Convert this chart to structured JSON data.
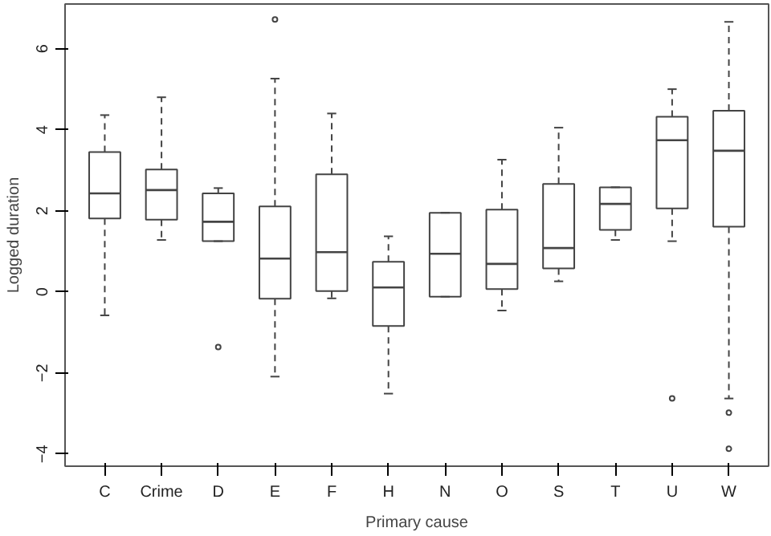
{
  "chart_data": {
    "type": "box",
    "xlabel": "Primary cause",
    "ylabel": "Logged duration",
    "categories": [
      "C",
      "Crime",
      "D",
      "E",
      "F",
      "H",
      "N",
      "O",
      "S",
      "T",
      "U",
      "W"
    ],
    "boxes": [
      {
        "low": -0.58,
        "q1": 1.81,
        "median": 2.43,
        "q3": 3.45,
        "high": 4.36
      },
      {
        "low": 1.28,
        "q1": 1.78,
        "median": 2.51,
        "q3": 3.02,
        "high": 4.8
      },
      {
        "low": 1.25,
        "q1": 1.25,
        "median": 1.73,
        "q3": 2.43,
        "high": 2.56,
        "outliers": [
          -1.36
        ]
      },
      {
        "low": -2.09,
        "q1": -0.17,
        "median": 0.82,
        "q3": 2.11,
        "high": 5.26,
        "outliers": [
          6.72
        ]
      },
      {
        "low": -0.16,
        "q1": 0.02,
        "median": 0.98,
        "q3": 2.9,
        "high": 4.4
      },
      {
        "low": -2.51,
        "q1": -0.84,
        "median": 0.11,
        "q3": 0.74,
        "high": 1.37
      },
      {
        "low": -0.12,
        "q1": -0.12,
        "median": 0.94,
        "q3": 1.95,
        "high": 1.95
      },
      {
        "low": -0.46,
        "q1": 0.07,
        "median": 0.69,
        "q3": 2.03,
        "high": 3.26
      },
      {
        "low": 0.26,
        "q1": 0.58,
        "median": 1.08,
        "q3": 2.66,
        "high": 4.05
      },
      {
        "low": 1.28,
        "q1": 1.53,
        "median": 2.17,
        "q3": 2.58,
        "high": 2.58
      },
      {
        "low": 1.25,
        "q1": 2.06,
        "median": 3.74,
        "q3": 4.32,
        "high": 5.0,
        "outliers": [
          -2.63
        ]
      },
      {
        "low": -2.63,
        "q1": 1.61,
        "median": 3.48,
        "q3": 4.47,
        "high": 6.66,
        "outliers": [
          -2.98,
          -3.87
        ]
      }
    ],
    "ylim": [
      -4.3,
      7.1
    ],
    "yticks": [
      -4,
      -2,
      0,
      2,
      4,
      6
    ],
    "grid": false
  }
}
